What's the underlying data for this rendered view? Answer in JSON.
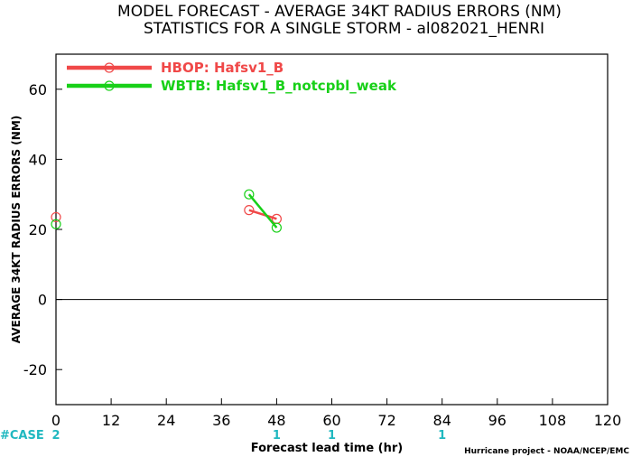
{
  "chart_data": {
    "type": "line",
    "title": "MODEL FORECAST - AVERAGE 34KT RADIUS ERRORS (NM)",
    "subtitle": "STATISTICS FOR A SINGLE STORM - al082021_HENRI",
    "xlabel": "Forecast lead time (hr)",
    "ylabel": "AVERAGE 34KT RADIUS ERRORS (NM)",
    "xlim": [
      0,
      120
    ],
    "ylim": [
      -30,
      70
    ],
    "x_ticks": [
      0,
      12,
      24,
      36,
      48,
      60,
      72,
      84,
      96,
      108,
      120
    ],
    "y_ticks": [
      -20,
      0,
      20,
      40,
      60
    ],
    "grid": false,
    "zero_line": true,
    "legend_position": "top-left",
    "series": [
      {
        "name": "HBOP: Hafsv1_B",
        "color": "#f04848",
        "points": [
          {
            "x": 0,
            "y": 23.5
          },
          {
            "x": 42,
            "y": 25.5
          },
          {
            "x": 48,
            "y": 23.0
          }
        ],
        "segments": [
          [
            1,
            2
          ]
        ]
      },
      {
        "name": "WBTB: Hafsv1_B_notcpbl_weak",
        "color": "#18d018",
        "points": [
          {
            "x": 0,
            "y": 21.5
          },
          {
            "x": 42,
            "y": 30.0
          },
          {
            "x": 48,
            "y": 20.5
          }
        ],
        "segments": [
          [
            1,
            2
          ]
        ]
      }
    ],
    "case_label": "#CASE",
    "case_counts": [
      {
        "x": 0,
        "label": "2"
      },
      {
        "x": 48,
        "label": "1"
      },
      {
        "x": 60,
        "label": "1"
      },
      {
        "x": 84,
        "label": "1"
      }
    ],
    "credit": "Hurricane project - NOAA/NCEP/EMC"
  }
}
